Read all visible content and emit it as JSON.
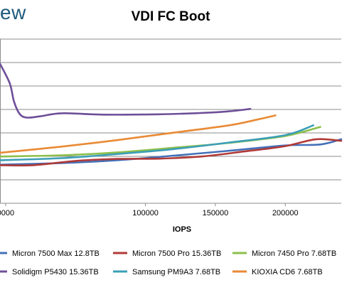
{
  "brand": "ew",
  "chart_data": {
    "type": "line",
    "title": "VDI FC Boot",
    "xlabel": "IOPS",
    "ylabel": "",
    "xlim": [
      -4000,
      240000
    ],
    "ylim": [
      0,
      1
    ],
    "x_ticks": [
      0,
      100000,
      150000,
      200000
    ],
    "x_tick_labels": [
      "0000",
      "100000",
      "150000",
      "200000"
    ],
    "grid": true,
    "legend_position": "bottom",
    "series": [
      {
        "name": "Micron 7500 Max 12.8TB",
        "color": "#4470b8",
        "points": [
          [
            -4000,
            0.235
          ],
          [
            40000,
            0.245
          ],
          [
            80000,
            0.262
          ],
          [
            120000,
            0.29
          ],
          [
            160000,
            0.32
          ],
          [
            200000,
            0.352
          ],
          [
            225000,
            0.358
          ],
          [
            240000,
            0.39
          ]
        ]
      },
      {
        "name": "Micron 7500 Pro 15.36TB",
        "color": "#b03a38",
        "points": [
          [
            -4000,
            0.232
          ],
          [
            20000,
            0.232
          ],
          [
            50000,
            0.258
          ],
          [
            80000,
            0.27
          ],
          [
            110000,
            0.272
          ],
          [
            140000,
            0.285
          ],
          [
            170000,
            0.315
          ],
          [
            200000,
            0.348
          ],
          [
            222000,
            0.39
          ],
          [
            240000,
            0.38
          ]
        ]
      },
      {
        "name": "Micron 7450 Pro 7.68TB",
        "color": "#8cbf4a",
        "points": [
          [
            -4000,
            0.285
          ],
          [
            40000,
            0.292
          ],
          [
            80000,
            0.31
          ],
          [
            120000,
            0.338
          ],
          [
            160000,
            0.368
          ],
          [
            200000,
            0.41
          ],
          [
            225000,
            0.465
          ]
        ]
      },
      {
        "name": "Solidigm P5430 15.36TB",
        "color": "#6e4f98",
        "points": [
          [
            -4000,
            0.85
          ],
          [
            3000,
            0.73
          ],
          [
            6000,
            0.62
          ],
          [
            10000,
            0.545
          ],
          [
            15000,
            0.522
          ],
          [
            25000,
            0.53
          ],
          [
            40000,
            0.548
          ],
          [
            70000,
            0.54
          ],
          [
            110000,
            0.542
          ],
          [
            140000,
            0.55
          ],
          [
            160000,
            0.56
          ],
          [
            175000,
            0.575
          ]
        ]
      },
      {
        "name": "Samsung PM9A3 7.68TB",
        "color": "#3c9fb8",
        "points": [
          [
            -4000,
            0.262
          ],
          [
            40000,
            0.275
          ],
          [
            80000,
            0.3
          ],
          [
            120000,
            0.33
          ],
          [
            160000,
            0.37
          ],
          [
            200000,
            0.415
          ],
          [
            220000,
            0.475
          ]
        ]
      },
      {
        "name": "KIOXIA CD6 7.68TB",
        "color": "#e98a35",
        "points": [
          [
            -4000,
            0.308
          ],
          [
            40000,
            0.345
          ],
          [
            80000,
            0.385
          ],
          [
            120000,
            0.43
          ],
          [
            160000,
            0.475
          ],
          [
            180000,
            0.51
          ],
          [
            193000,
            0.535
          ]
        ]
      }
    ]
  }
}
